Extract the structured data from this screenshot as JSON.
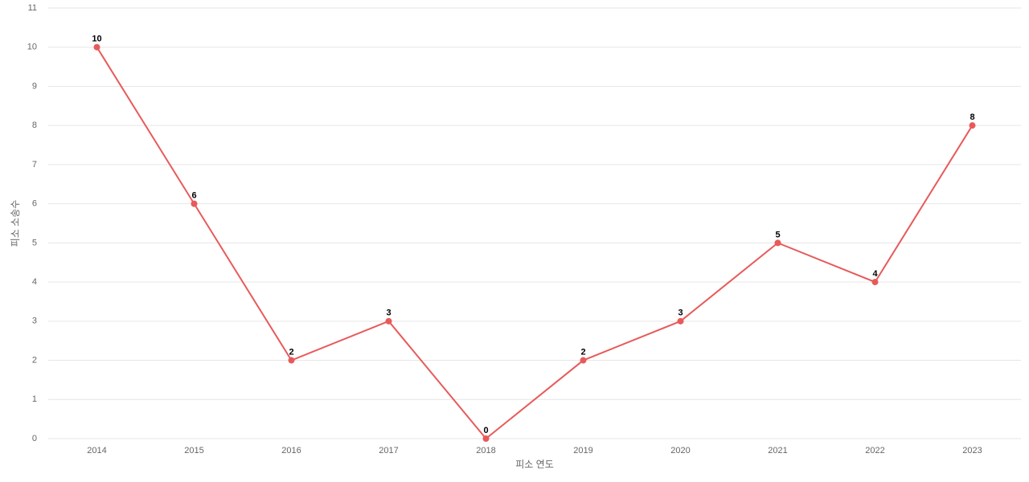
{
  "chart_data": {
    "type": "line",
    "x_label": "피소 연도",
    "y_label": "피소 소송수",
    "categories": [
      "2014",
      "2015",
      "2016",
      "2017",
      "2018",
      "2019",
      "2020",
      "2021",
      "2022",
      "2023"
    ],
    "values": [
      10,
      6,
      2,
      3,
      0,
      2,
      3,
      5,
      4,
      8
    ],
    "color": "#e85a5a",
    "ylim": [
      0,
      11
    ],
    "yticks": [
      0,
      1,
      2,
      3,
      4,
      5,
      6,
      7,
      8,
      9,
      10,
      11
    ],
    "grid": true
  }
}
